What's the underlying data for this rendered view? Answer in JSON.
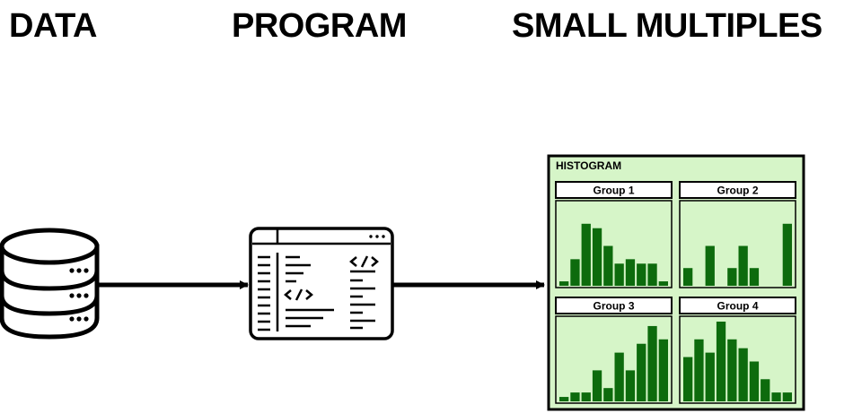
{
  "headings": {
    "data": "DATA",
    "program": "PROGRAM",
    "small_multiples": "SMALL MULTIPLES"
  },
  "colors": {
    "panel_background": "#d6f5c8",
    "bar_fill": "#0d6b0d",
    "stroke": "#000000"
  },
  "icons": {
    "data": "database-icon",
    "program": "code-window-icon"
  },
  "histogram": {
    "title": "HISTOGRAM",
    "groups": [
      {
        "label": "Group 1",
        "values": [
          1,
          6,
          14,
          13,
          9,
          5,
          6,
          5,
          5,
          1
        ]
      },
      {
        "label": "Group 2",
        "values": [
          4,
          0,
          9,
          0,
          4,
          9,
          4,
          0,
          0,
          14
        ]
      },
      {
        "label": "Group 3",
        "values": [
          1,
          2,
          2,
          7,
          3,
          11,
          7,
          13,
          17,
          14
        ]
      },
      {
        "label": "Group 4",
        "values": [
          10,
          14,
          11,
          18,
          14,
          12,
          9,
          5,
          2,
          2
        ]
      }
    ]
  }
}
